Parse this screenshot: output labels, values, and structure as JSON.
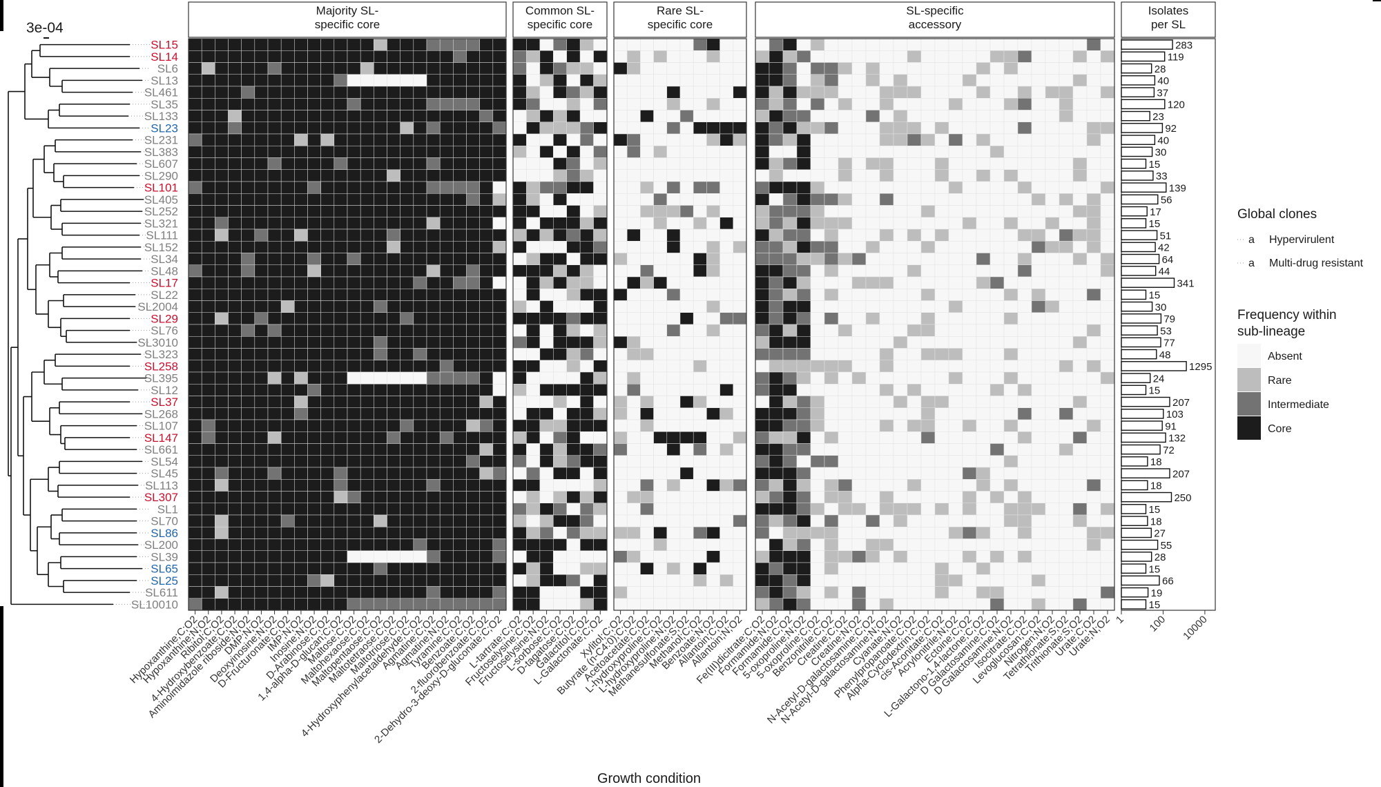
{
  "chart_data": {
    "type": "heatmap",
    "scale_bar_label": "3e-04",
    "xlabel": "Growth condition",
    "rows": [
      "SL15",
      "SL14",
      "SL6",
      "SL13",
      "SL461",
      "SL35",
      "SL133",
      "SL23",
      "SL231",
      "SL383",
      "SL607",
      "SL290",
      "SL101",
      "SL405",
      "SL252",
      "SL321",
      "SL111",
      "SL152",
      "SL34",
      "SL48",
      "SL17",
      "SL22",
      "SL2004",
      "SL29",
      "SL76",
      "SL3010",
      "SL323",
      "SL258",
      "SL395",
      "SL12",
      "SL37",
      "SL268",
      "SL107",
      "SL147",
      "SL661",
      "SL54",
      "SL45",
      "SL113",
      "SL307",
      "SL1",
      "SL70",
      "SL86",
      "SL200",
      "SL39",
      "SL65",
      "SL25",
      "SL611",
      "SL10010"
    ],
    "row_groups": {
      "multi_drug_resistant": [
        "SL15",
        "SL14",
        "SL101",
        "SL17",
        "SL29",
        "SL258",
        "SL37",
        "SL147",
        "SL307"
      ],
      "hypervirulent": [
        "SL23",
        "SL86",
        "SL65",
        "SL25"
      ]
    },
    "panels": [
      {
        "title": "Majority SL-\nspecific core",
        "columns": [
          "Hypoxanthine;C;O2",
          "Hypoxanthine;N;O2",
          "Ribitol;C;O2",
          "4-Hydroxybenzoate;C;O2",
          "Aminoimidazole riboside;N;O2",
          "DMP;N;O2",
          "Deoxyinosine;N;O2",
          "D-Fructuronate;C;O2",
          "IMP;N;O2",
          "Inosine;N;O2",
          "D-Arabinose;C;O2",
          "1,4-alpha-D-glucan;C;O2",
          "Maltose;C;O2",
          "Maltohexaose;C;O2",
          "Maltopentaose;C;O2",
          "Maltotetraose;C;O2",
          "Maltotriose;C;O2",
          "4-Hydroxyphenylacetaldehyde;C;O2",
          "Agmatine;C;O2",
          "Agmatine;N;O2",
          "Tyramine;C;O2",
          "Benzoate;C;O2",
          "2-fluorobenzoate;C;O2",
          "2-Dehydro-3-deoxy-D-gluconate;C;O2"
        ]
      },
      {
        "title": "Common SL-\nspecific core",
        "columns": [
          "L-tartrate;C;O2",
          "Fructoselysine;C;O2",
          "Fructoselysine;N;O2",
          "L-sorbose;C;O2",
          "D-tagatose;C;O2",
          "Galactitol;C;O2",
          "L-Galactonate;C;O2"
        ]
      },
      {
        "title": "Rare SL-\nspecific core",
        "columns": [
          "Xylitol;C;O2",
          "Butyrate (n-C4:0);C;O2",
          "Acetoacetate;C;O2",
          "L-hydroxyproline;C;O2",
          "L-hydroxyproline;N;O2",
          "Methanesulfonate;S;O2",
          "Methanol;C;O2",
          "Benzoate;N;O2",
          "Allantoin;C;O2",
          "Allantoin;N;O2"
        ]
      },
      {
        "title": "SL-specific\naccessory",
        "columns": [
          "Fe(III)dicitrate;C;O2",
          "Formamide;N;O2",
          "Formamide;C;O2",
          "5-oxoproline;N;O2",
          "5-oxoproline;C;O2",
          "Benzonitrile;C;O2",
          "Creatine;C;O2",
          "Creatine;N;O2",
          "N-Acetyl-D-galactosamine;C;O2",
          "N-Acetyl-D-galactosamine;N;O2",
          "Cyanate;N;O2",
          "Phenylpropanoate;C;O2",
          "Alpha-Cyclodextrin;C;O2",
          "cis-Aconitate;C;O2",
          "Acrylonitrile;N;O2",
          "Ectoine;C;O2",
          "L-Galactono-1,4-lactone;C;O2",
          "D Galactosamine;C;O2",
          "D Galactosamine;N;O2",
          "Isocitrate;C;O2",
          "Levoglucosan;C;O2",
          "Nitrogen;N;O2",
          "Tetrathionate;S;O2",
          "Trithionate;S;O2",
          "Urate;C;O2",
          "Urate;N;O2"
        ]
      }
    ],
    "frequency_levels": [
      "Absent",
      "Rare",
      "Intermediate",
      "Core"
    ],
    "frequency_colors": {
      "Absent": "#f7f7f7",
      "Rare": "#bdbdbd",
      "Intermediate": "#737373",
      "Core": "#1c1c1c"
    },
    "isolates_title": "Isolates\nper SL",
    "isolates_axis": {
      "scale": "log10",
      "ticks": [
        "1",
        "100",
        "10000"
      ]
    },
    "isolates_per_sl": [
      283,
      119,
      28,
      40,
      37,
      120,
      23,
      92,
      40,
      30,
      15,
      33,
      139,
      56,
      17,
      15,
      51,
      42,
      64,
      44,
      341,
      15,
      30,
      79,
      53,
      77,
      48,
      1295,
      24,
      15,
      207,
      103,
      91,
      132,
      72,
      18,
      207,
      18,
      250,
      15,
      18,
      27,
      55,
      28,
      15,
      66,
      19,
      15
    ],
    "legend": {
      "clones_title": "Global clones",
      "clones_marker": "a",
      "clones": [
        {
          "label": "Hypervirulent",
          "color": "#2166ac"
        },
        {
          "label": "Multi-drug resistant",
          "color": "#c8102e"
        }
      ],
      "freq_title": "Frequency within\nsub-lineage"
    },
    "colors": {
      "hypervirulent": "#2166ac",
      "mdr": "#c8102e",
      "other_label": "#7f7f7f"
    }
  }
}
